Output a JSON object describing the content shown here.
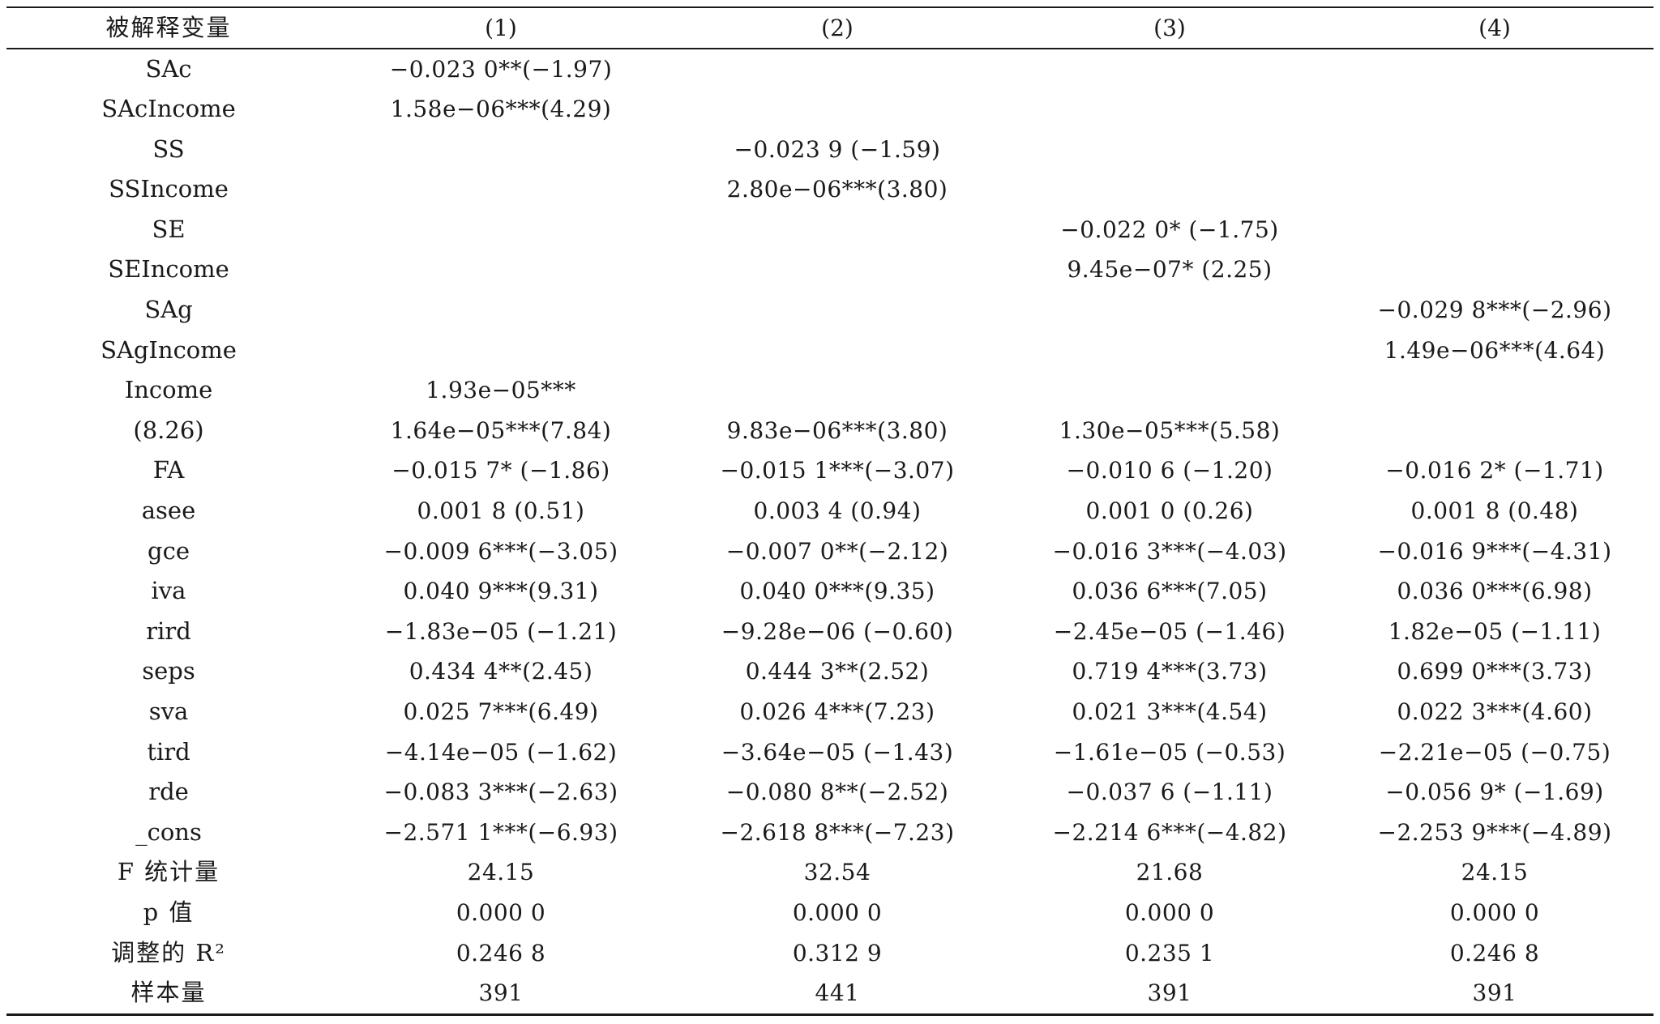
{
  "table": {
    "header": [
      "被解释变量",
      "(1)",
      "(2)",
      "(3)",
      "(4)"
    ],
    "rows": [
      {
        "label": "SAc",
        "c1": "−0.023 0**(−1.97)",
        "c2": "",
        "c3": "",
        "c4": ""
      },
      {
        "label": "SAcIncome",
        "c1": "1.58e−06***(4.29)",
        "c2": "",
        "c3": "",
        "c4": ""
      },
      {
        "label": "SS",
        "c1": "",
        "c2": "−0.023 9 (−1.59)",
        "c3": "",
        "c4": ""
      },
      {
        "label": "SSIncome",
        "c1": "",
        "c2": "2.80e−06***(3.80)",
        "c3": "",
        "c4": ""
      },
      {
        "label": "SE",
        "c1": "",
        "c2": "",
        "c3": "−0.022 0* (−1.75)",
        "c4": ""
      },
      {
        "label": "SEIncome",
        "c1": "",
        "c2": "",
        "c3": "9.45e−07* (2.25)",
        "c4": ""
      },
      {
        "label": "SAg",
        "c1": "",
        "c2": "",
        "c3": "",
        "c4": "−0.029 8***(−2.96)"
      },
      {
        "label": "SAgIncome",
        "c1": "",
        "c2": "",
        "c3": "",
        "c4": "1.49e−06***(4.64)"
      },
      {
        "label": "Income",
        "c1": "1.93e−05***",
        "c2": "",
        "c3": "",
        "c4": ""
      },
      {
        "label": "(8.26)",
        "c1": "1.64e−05***(7.84)",
        "c2": "9.83e−06***(3.80)",
        "c3": "1.30e−05***(5.58)",
        "c4": ""
      },
      {
        "label": "FA",
        "c1": "−0.015 7* (−1.86)",
        "c2": "−0.015 1***(−3.07)",
        "c3": "−0.010 6 (−1.20)",
        "c4": "−0.016 2* (−1.71)"
      },
      {
        "label": "asee",
        "c1": "0.001 8 (0.51)",
        "c2": "0.003 4 (0.94)",
        "c3": "0.001 0 (0.26)",
        "c4": "0.001 8 (0.48)"
      },
      {
        "label": "gce",
        "c1": "−0.009 6***(−3.05)",
        "c2": "−0.007 0**(−2.12)",
        "c3": "−0.016 3***(−4.03)",
        "c4": "−0.016 9***(−4.31)"
      },
      {
        "label": "iva",
        "c1": "0.040 9***(9.31)",
        "c2": "0.040 0***(9.35)",
        "c3": "0.036 6***(7.05)",
        "c4": "0.036 0***(6.98)"
      },
      {
        "label": "rird",
        "c1": "−1.83e−05 (−1.21)",
        "c2": "−9.28e−06 (−0.60)",
        "c3": "−2.45e−05 (−1.46)",
        "c4": "1.82e−05 (−1.11)"
      },
      {
        "label": "seps",
        "c1": "0.434 4**(2.45)",
        "c2": "0.444 3**(2.52)",
        "c3": "0.719 4***(3.73)",
        "c4": "0.699 0***(3.73)"
      },
      {
        "label": "sva",
        "c1": "0.025 7***(6.49)",
        "c2": "0.026 4***(7.23)",
        "c3": "0.021 3***(4.54)",
        "c4": "0.022 3***(4.60)"
      },
      {
        "label": "tird",
        "c1": "−4.14e−05 (−1.62)",
        "c2": "−3.64e−05 (−1.43)",
        "c3": "−1.61e−05 (−0.53)",
        "c4": "−2.21e−05 (−0.75)"
      },
      {
        "label": "rde",
        "c1": "−0.083 3***(−2.63)",
        "c2": "−0.080 8**(−2.52)",
        "c3": "−0.037 6 (−1.11)",
        "c4": "−0.056 9* (−1.69)"
      },
      {
        "label": "_cons",
        "c1": "−2.571 1***(−6.93)",
        "c2": "−2.618 8***(−7.23)",
        "c3": "−2.214 6***(−4.82)",
        "c4": "−2.253 9***(−4.89)"
      },
      {
        "label": "F 统计量",
        "c1": "24.15",
        "c2": "32.54",
        "c3": "21.68",
        "c4": "24.15"
      },
      {
        "label": "p 值",
        "c1": "0.000 0",
        "c2": "0.000 0",
        "c3": "0.000 0",
        "c4": "0.000 0"
      },
      {
        "label": "调整的 R²",
        "c1": "0.246 8",
        "c2": "0.312 9",
        "c3": "0.235 1",
        "c4": "0.246 8"
      },
      {
        "label": "样本量",
        "c1": "391",
        "c2": "441",
        "c3": "391",
        "c4": "391"
      }
    ]
  }
}
